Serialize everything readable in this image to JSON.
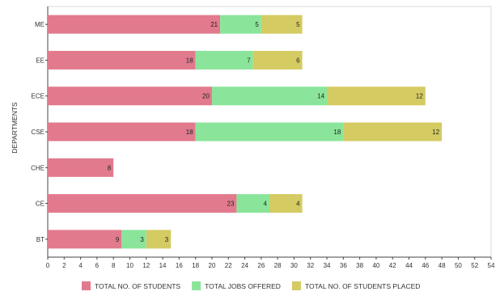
{
  "chart_data": {
    "type": "bar",
    "orientation": "horizontal",
    "stacked": true,
    "categories": [
      "ME",
      "EE",
      "ECE",
      "CSE",
      "CHE",
      "CE",
      "BT"
    ],
    "series": [
      {
        "name": "TOTAL NO. OF STUDENTS",
        "values": [
          21,
          18,
          20,
          18,
          8,
          23,
          9
        ],
        "color": "#e27a8e"
      },
      {
        "name": "TOTAL JOBS OFFERED",
        "values": [
          5,
          7,
          14,
          18,
          null,
          4,
          3
        ],
        "color": "#8ae59a"
      },
      {
        "name": "TOTAL NO. OF STUDENTS PLACED",
        "values": [
          5,
          6,
          12,
          12,
          null,
          4,
          3
        ],
        "color": "#d4cb62"
      }
    ],
    "ylabel": "DEPARTMENTS",
    "xlabel": "",
    "xlim": [
      0,
      54
    ],
    "xticks": [
      "0",
      "2",
      "4",
      "6",
      "8",
      "10",
      "12",
      "14",
      "16",
      "18",
      "20",
      "22",
      "24",
      "26",
      "28",
      "30",
      "32",
      "34",
      "36",
      "38",
      "40",
      "42",
      "44",
      "46",
      "48",
      "50",
      "52",
      "54"
    ],
    "grid": false,
    "legend_position": "bottom"
  }
}
